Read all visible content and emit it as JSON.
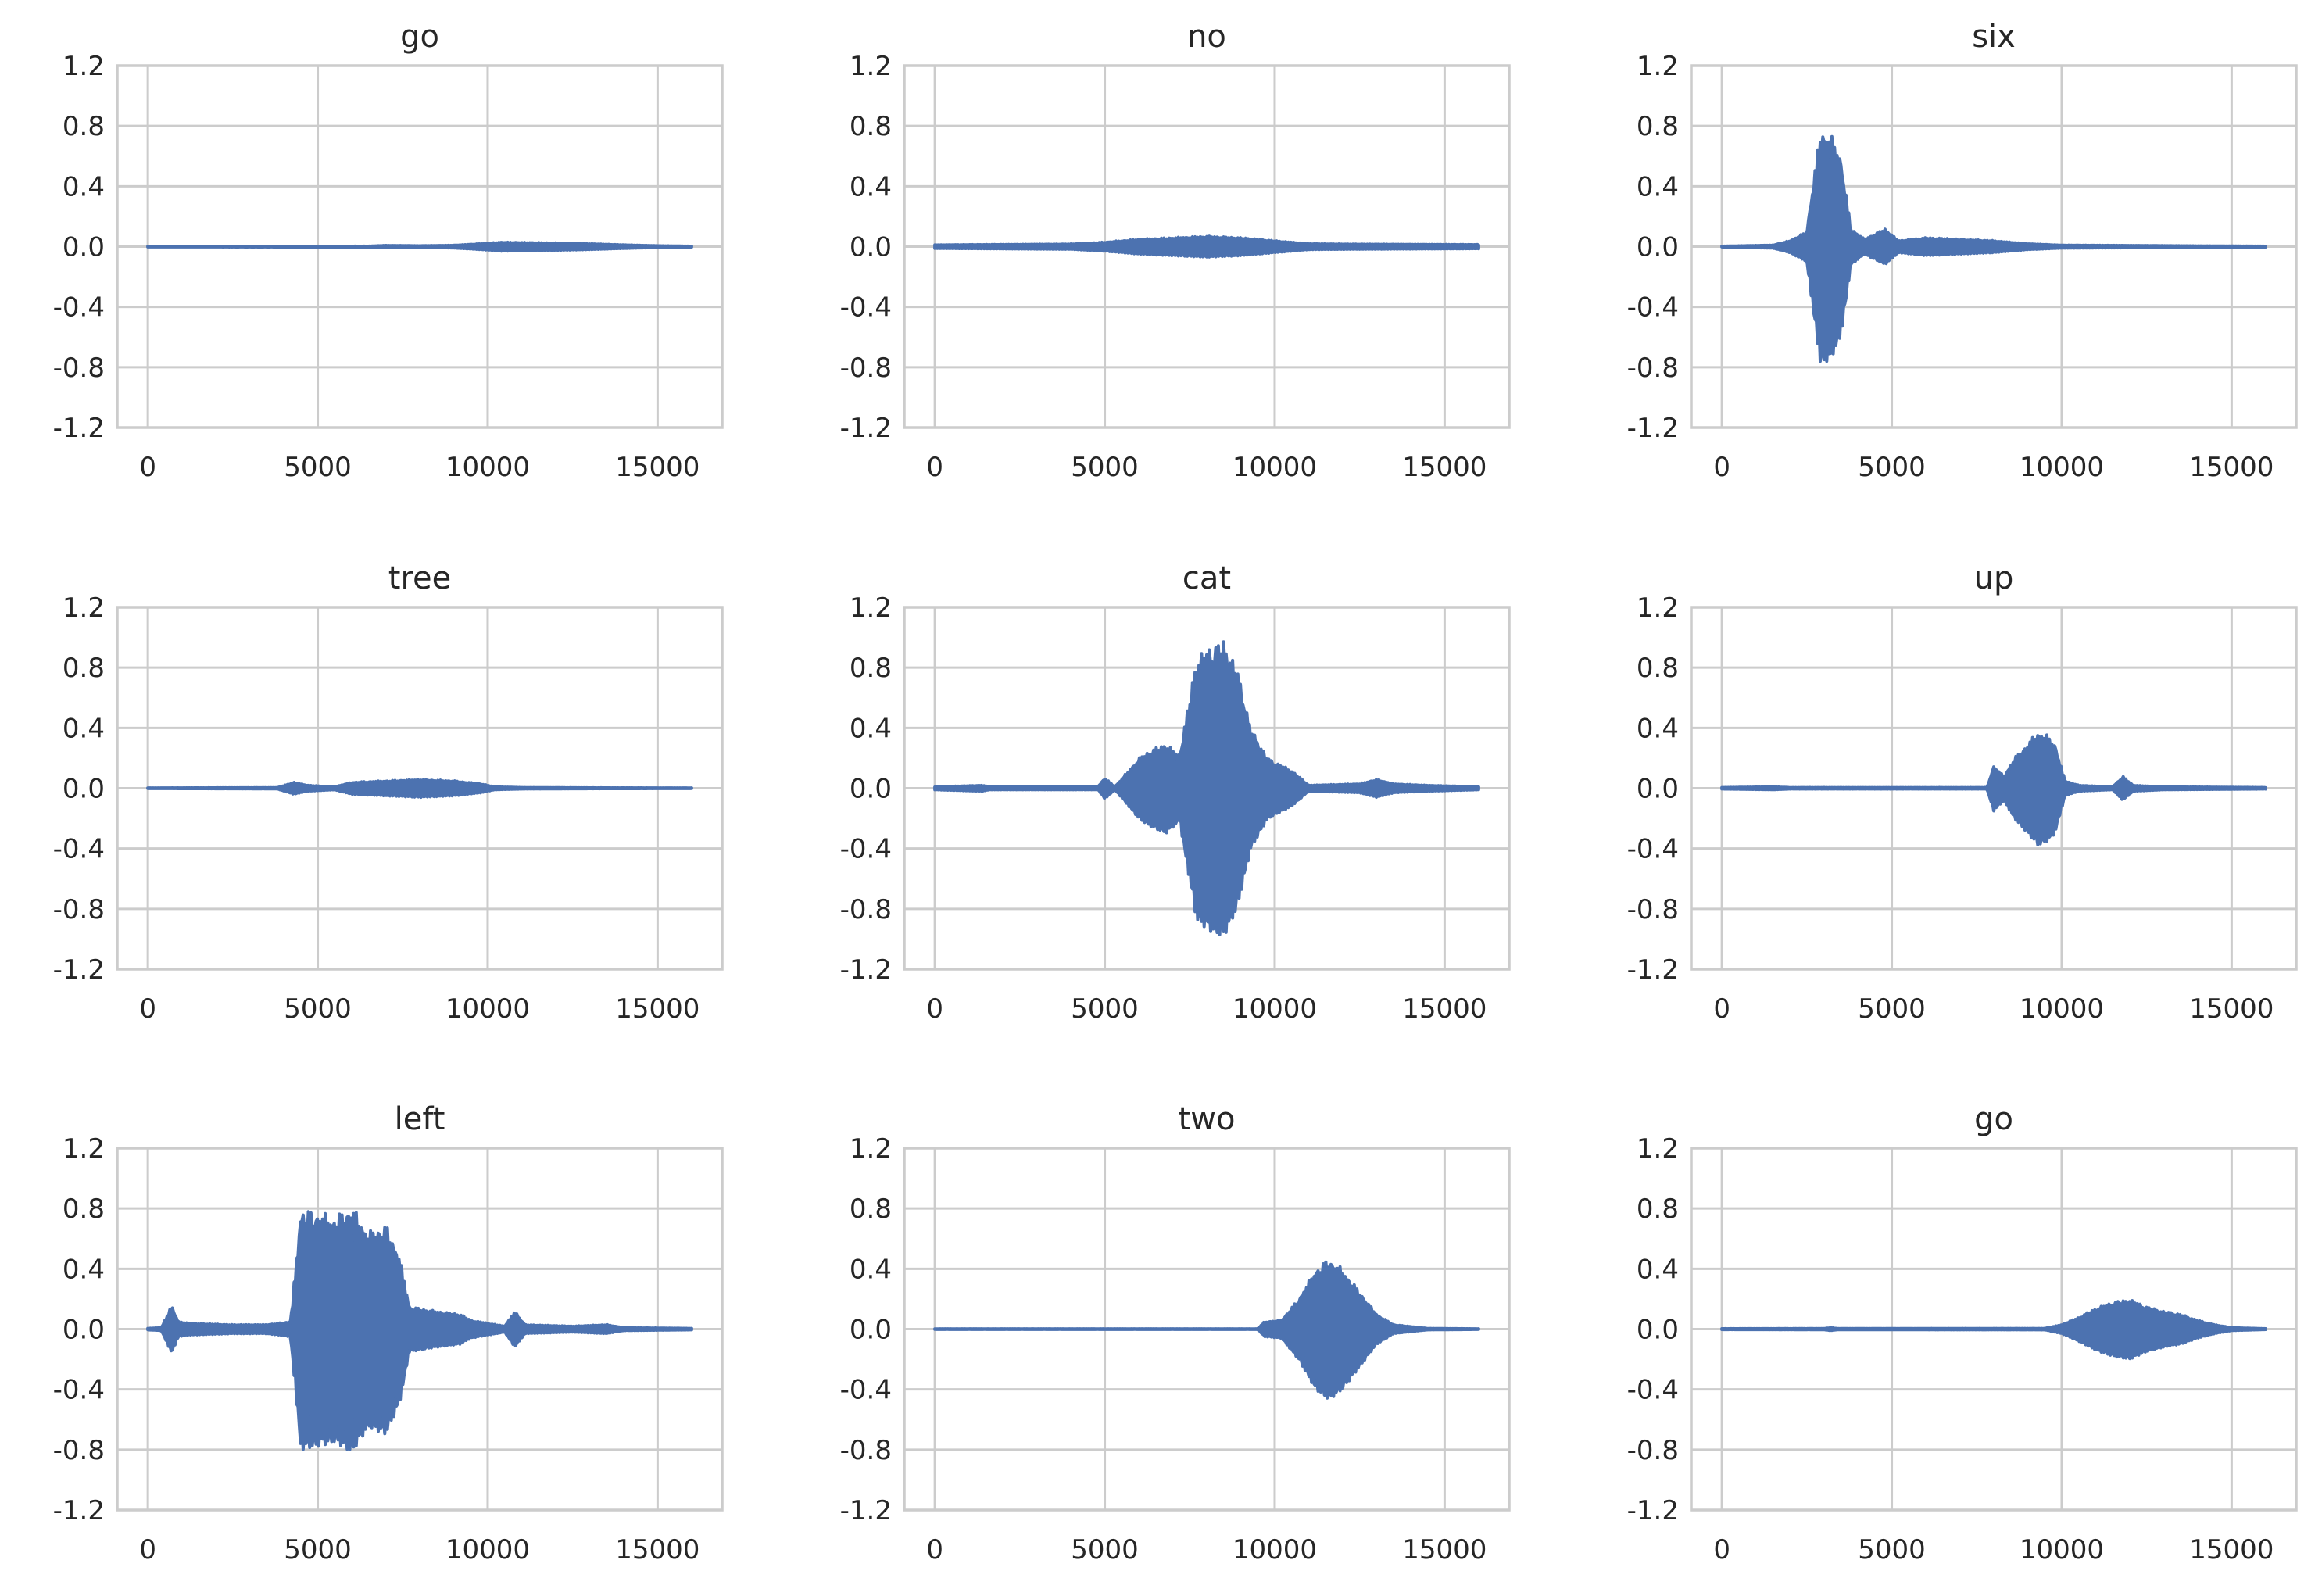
{
  "colors": {
    "line": "#4c72b0",
    "grid": "#cccccc",
    "text": "#262626",
    "background": "#ffffff"
  },
  "chart_data": [
    {
      "type": "line",
      "title": "go",
      "xticks": [
        "0",
        "5000",
        "10000",
        "15000"
      ],
      "xticks_values": [
        0,
        5000,
        10000,
        15000
      ],
      "yticks": [
        "1.2",
        "0.8",
        "0.4",
        "0.0",
        "-0.4",
        "-0.8",
        "-1.2"
      ],
      "yticks_values": [
        1.2,
        0.8,
        0.4,
        0.0,
        -0.4,
        -0.8,
        -1.2
      ],
      "xlim": [
        -900,
        16900
      ],
      "ylim": [
        -1.2,
        1.2
      ],
      "grid": true,
      "envelope": {
        "x": [
          0,
          6500,
          7000,
          8000,
          9000,
          9800,
          10400,
          11000,
          12000,
          13000,
          14000,
          15000,
          16000
        ],
        "amp": [
          0.002,
          0.003,
          0.008,
          0.006,
          0.009,
          0.02,
          0.03,
          0.028,
          0.025,
          0.02,
          0.012,
          0.006,
          0.003
        ]
      }
    },
    {
      "type": "line",
      "title": "no",
      "xticks": [
        "0",
        "5000",
        "10000",
        "15000"
      ],
      "xticks_values": [
        0,
        5000,
        10000,
        15000
      ],
      "yticks": [
        "1.2",
        "0.8",
        "0.4",
        "0.0",
        "-0.4",
        "-0.8",
        "-1.2"
      ],
      "yticks_values": [
        1.2,
        0.8,
        0.4,
        0.0,
        -0.4,
        -0.8,
        -1.2
      ],
      "xlim": [
        -900,
        16900
      ],
      "ylim": [
        -1.2,
        1.2
      ],
      "grid": true,
      "envelope": {
        "x": [
          0,
          2000,
          4000,
          5000,
          6000,
          7000,
          8000,
          9000,
          10000,
          11000,
          12000,
          14000,
          16000
        ],
        "amp": [
          0.012,
          0.015,
          0.018,
          0.03,
          0.05,
          0.06,
          0.07,
          0.06,
          0.04,
          0.02,
          0.018,
          0.016,
          0.014
        ]
      }
    },
    {
      "type": "line",
      "title": "six",
      "xticks": [
        "0",
        "5000",
        "10000",
        "15000"
      ],
      "xticks_values": [
        0,
        5000,
        10000,
        15000
      ],
      "yticks": [
        "1.2",
        "0.8",
        "0.4",
        "0.0",
        "-0.4",
        "-0.8",
        "-1.2"
      ],
      "yticks_values": [
        1.2,
        0.8,
        0.4,
        0.0,
        -0.4,
        -0.8,
        -1.2
      ],
      "xlim": [
        -900,
        16900
      ],
      "ylim": [
        -1.2,
        1.2
      ],
      "grid": true,
      "envelope": {
        "x": [
          0,
          1500,
          2000,
          2500,
          2700,
          2900,
          3200,
          3500,
          3800,
          4200,
          4800,
          5200,
          6000,
          7000,
          8000,
          9000,
          10000,
          12000,
          14000,
          16000
        ],
        "amp": [
          0.003,
          0.01,
          0.04,
          0.1,
          0.45,
          0.78,
          0.75,
          0.6,
          0.12,
          0.05,
          0.12,
          0.04,
          0.06,
          0.05,
          0.04,
          0.02,
          0.01,
          0.008,
          0.005,
          0.003
        ]
      }
    },
    {
      "type": "line",
      "title": "tree",
      "xticks": [
        "0",
        "5000",
        "10000",
        "15000"
      ],
      "xticks_values": [
        0,
        5000,
        10000,
        15000
      ],
      "yticks": [
        "1.2",
        "0.8",
        "0.4",
        "0.0",
        "-0.4",
        "-0.8",
        "-1.2"
      ],
      "yticks_values": [
        1.2,
        0.8,
        0.4,
        0.0,
        -0.4,
        -0.8,
        -1.2
      ],
      "xlim": [
        -900,
        16900
      ],
      "ylim": [
        -1.2,
        1.2
      ],
      "grid": true,
      "envelope": {
        "x": [
          0,
          3800,
          4300,
          4700,
          5500,
          6000,
          7000,
          8000,
          9000,
          9800,
          10200,
          11000,
          13000,
          16000
        ],
        "amp": [
          0.002,
          0.004,
          0.04,
          0.02,
          0.01,
          0.04,
          0.05,
          0.06,
          0.05,
          0.03,
          0.01,
          0.005,
          0.003,
          0.002
        ]
      }
    },
    {
      "type": "line",
      "title": "cat",
      "xticks": [
        "0",
        "5000",
        "10000",
        "15000"
      ],
      "xticks_values": [
        0,
        5000,
        10000,
        15000
      ],
      "yticks": [
        "1.2",
        "0.8",
        "0.4",
        "0.0",
        "-0.4",
        "-0.8",
        "-1.2"
      ],
      "yticks_values": [
        1.2,
        0.8,
        0.4,
        0.0,
        -0.4,
        -0.8,
        -1.2
      ],
      "xlim": [
        -900,
        16900
      ],
      "ylim": [
        -1.2,
        1.2
      ],
      "grid": true,
      "envelope": {
        "x": [
          0,
          1400,
          1600,
          4800,
          5000,
          5300,
          6000,
          6300,
          6800,
          7200,
          7700,
          8100,
          8500,
          8900,
          9300,
          9800,
          10500,
          11000,
          12500,
          13000,
          13500,
          14500,
          16000
        ],
        "amp": [
          0.01,
          0.02,
          0.01,
          0.01,
          0.07,
          0.01,
          0.2,
          0.25,
          0.3,
          0.22,
          0.88,
          0.95,
          0.99,
          0.8,
          0.4,
          0.2,
          0.12,
          0.02,
          0.03,
          0.06,
          0.03,
          0.02,
          0.01
        ]
      }
    },
    {
      "type": "line",
      "title": "up",
      "xticks": [
        "0",
        "5000",
        "10000",
        "15000"
      ],
      "xticks_values": [
        0,
        5000,
        10000,
        15000
      ],
      "yticks": [
        "1.2",
        "0.8",
        "0.4",
        "0.0",
        "-0.4",
        "-0.8",
        "-1.2"
      ],
      "yticks_values": [
        1.2,
        0.8,
        0.4,
        0.0,
        -0.4,
        -0.8,
        -1.2
      ],
      "xlim": [
        -900,
        16900
      ],
      "ylim": [
        -1.2,
        1.2
      ],
      "grid": true,
      "envelope": {
        "x": [
          0,
          1500,
          2000,
          7800,
          8000,
          8300,
          8600,
          9000,
          9300,
          9600,
          9800,
          10100,
          10500,
          11500,
          11800,
          12100,
          13000,
          16000
        ],
        "amp": [
          0.005,
          0.01,
          0.005,
          0.005,
          0.15,
          0.08,
          0.2,
          0.3,
          0.38,
          0.35,
          0.3,
          0.05,
          0.02,
          0.01,
          0.08,
          0.02,
          0.01,
          0.005
        ]
      }
    },
    {
      "type": "line",
      "title": "left",
      "xticks": [
        "0",
        "5000",
        "10000",
        "15000"
      ],
      "xticks_values": [
        0,
        5000,
        10000,
        15000
      ],
      "yticks": [
        "1.2",
        "0.8",
        "0.4",
        "0.0",
        "-0.4",
        "-0.8",
        "-1.2"
      ],
      "yticks_values": [
        1.2,
        0.8,
        0.4,
        0.0,
        -0.4,
        -0.8,
        -1.2
      ],
      "xlim": [
        -900,
        16900
      ],
      "ylim": [
        -1.2,
        1.2
      ],
      "grid": true,
      "envelope": {
        "x": [
          0,
          400,
          700,
          900,
          1200,
          2500,
          3500,
          4200,
          4500,
          5000,
          5500,
          6000,
          6500,
          7000,
          7400,
          7700,
          8500,
          9200,
          9500,
          10500,
          10800,
          11100,
          12500,
          13500,
          14000,
          16000
        ],
        "amp": [
          0.005,
          0.01,
          0.16,
          0.05,
          0.04,
          0.03,
          0.03,
          0.05,
          0.8,
          0.78,
          0.75,
          0.82,
          0.65,
          0.7,
          0.5,
          0.15,
          0.12,
          0.1,
          0.06,
          0.02,
          0.12,
          0.03,
          0.02,
          0.03,
          0.01,
          0.005
        ]
      }
    },
    {
      "type": "line",
      "title": "two",
      "xticks": [
        "0",
        "5000",
        "10000",
        "15000"
      ],
      "xticks_values": [
        0,
        5000,
        10000,
        15000
      ],
      "yticks": [
        "1.2",
        "0.8",
        "0.4",
        "0.0",
        "-0.4",
        "-0.8",
        "-1.2"
      ],
      "yticks_values": [
        1.2,
        0.8,
        0.4,
        0.0,
        -0.4,
        -0.8,
        -1.2
      ],
      "xlim": [
        -900,
        16900
      ],
      "ylim": [
        -1.2,
        1.2
      ],
      "grid": true,
      "envelope": {
        "x": [
          0,
          9500,
          9700,
          10200,
          10700,
          11200,
          11600,
          12000,
          12500,
          13000,
          13500,
          14500,
          16000
        ],
        "amp": [
          0.002,
          0.002,
          0.05,
          0.06,
          0.2,
          0.4,
          0.47,
          0.4,
          0.25,
          0.1,
          0.03,
          0.005,
          0.002
        ]
      }
    },
    {
      "type": "line",
      "title": "go",
      "xticks": [
        "0",
        "5000",
        "10000",
        "15000"
      ],
      "xticks_values": [
        0,
        5000,
        10000,
        15000
      ],
      "yticks": [
        "1.2",
        "0.8",
        "0.4",
        "0.0",
        "-0.4",
        "-0.8",
        "-1.2"
      ],
      "yticks_values": [
        1.2,
        0.8,
        0.4,
        0.0,
        -0.4,
        -0.8,
        -1.2
      ],
      "xlim": [
        -900,
        16900
      ],
      "ylim": [
        -1.2,
        1.2
      ],
      "grid": true,
      "envelope": {
        "x": [
          0,
          3000,
          3200,
          3400,
          9500,
          10000,
          10500,
          11000,
          11500,
          12000,
          12500,
          13000,
          13500,
          14000,
          14500,
          15000,
          16000
        ],
        "amp": [
          0.003,
          0.004,
          0.01,
          0.004,
          0.005,
          0.03,
          0.08,
          0.14,
          0.18,
          0.2,
          0.15,
          0.12,
          0.1,
          0.06,
          0.03,
          0.01,
          0.003
        ]
      }
    }
  ]
}
